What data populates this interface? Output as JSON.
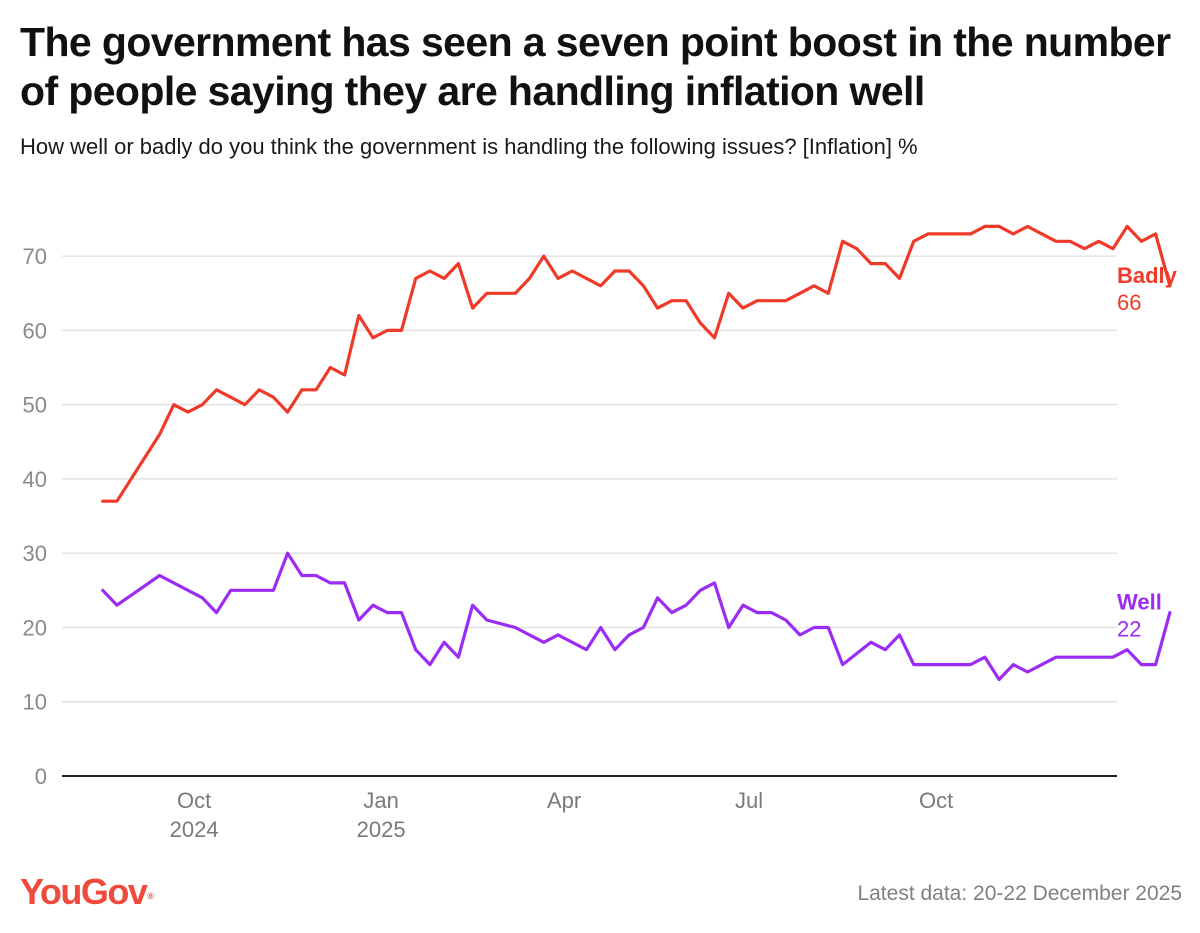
{
  "header": {
    "title": "The government has seen a seven point boost in the number of people saying they are handling inflation well",
    "subtitle": "How well or badly do you think the government is handling the following issues? [Inflation] %"
  },
  "footer": {
    "logo_text": "YouGov",
    "logo_mark": "®",
    "latest_data": "Latest data: 20-22 December 2025"
  },
  "colors": {
    "badly": "#f03a29",
    "well": "#9b2cf5",
    "grid": "#e3e3e3",
    "axis": "#222222",
    "tick": "#8a8a8a"
  },
  "chart_data": {
    "type": "line",
    "title": "The government has seen a seven point boost in the number of people saying they are handling inflation well",
    "ylabel": "%",
    "ylim": [
      0,
      75
    ],
    "yticks": [
      0,
      10,
      20,
      30,
      40,
      50,
      60,
      70
    ],
    "xlim": [
      "2024-07-28",
      "2025-12-29"
    ],
    "xticks": [
      {
        "date": "2024-10-01",
        "label": "Oct",
        "sublabel": "2024"
      },
      {
        "date": "2025-01-01",
        "label": "Jan",
        "sublabel": "2025"
      },
      {
        "date": "2025-04-01",
        "label": "Apr",
        "sublabel": ""
      },
      {
        "date": "2025-07-01",
        "label": "Jul",
        "sublabel": ""
      },
      {
        "date": "2025-10-01",
        "label": "Oct",
        "sublabel": ""
      }
    ],
    "grid": true,
    "series": [
      {
        "name": "Badly",
        "end_label": "Badly",
        "end_value": "66",
        "points": [
          [
            "2024-08-17",
            37
          ],
          [
            "2024-08-24",
            37
          ],
          [
            "2024-09-14",
            46
          ],
          [
            "2024-09-21",
            50
          ],
          [
            "2024-09-28",
            49
          ],
          [
            "2024-10-05",
            50
          ],
          [
            "2024-10-12",
            52
          ],
          [
            "2024-10-19",
            51
          ],
          [
            "2024-10-26",
            50
          ],
          [
            "2024-11-02",
            52
          ],
          [
            "2024-11-09",
            51
          ],
          [
            "2024-11-16",
            49
          ],
          [
            "2024-11-23",
            52
          ],
          [
            "2024-11-30",
            52
          ],
          [
            "2024-12-07",
            55
          ],
          [
            "2024-12-14",
            54
          ],
          [
            "2024-12-21",
            62
          ],
          [
            "2024-12-28",
            59
          ],
          [
            "2025-01-04",
            60
          ],
          [
            "2025-01-11",
            60
          ],
          [
            "2025-01-18",
            67
          ],
          [
            "2025-01-25",
            68
          ],
          [
            "2025-02-01",
            67
          ],
          [
            "2025-02-08",
            69
          ],
          [
            "2025-02-15",
            63
          ],
          [
            "2025-02-22",
            65
          ],
          [
            "2025-03-01",
            65
          ],
          [
            "2025-03-08",
            65
          ],
          [
            "2025-03-15",
            67
          ],
          [
            "2025-03-22",
            70
          ],
          [
            "2025-03-29",
            67
          ],
          [
            "2025-04-05",
            68
          ],
          [
            "2025-04-12",
            67
          ],
          [
            "2025-04-19",
            66
          ],
          [
            "2025-04-26",
            68
          ],
          [
            "2025-05-03",
            68
          ],
          [
            "2025-05-10",
            66
          ],
          [
            "2025-05-17",
            63
          ],
          [
            "2025-05-24",
            64
          ],
          [
            "2025-05-31",
            64
          ],
          [
            "2025-06-07",
            61
          ],
          [
            "2025-06-14",
            59
          ],
          [
            "2025-06-21",
            65
          ],
          [
            "2025-06-28",
            63
          ],
          [
            "2025-07-05",
            64
          ],
          [
            "2025-07-12",
            64
          ],
          [
            "2025-07-19",
            64
          ],
          [
            "2025-07-26",
            65
          ],
          [
            "2025-08-02",
            66
          ],
          [
            "2025-08-09",
            65
          ],
          [
            "2025-08-16",
            72
          ],
          [
            "2025-08-23",
            71
          ],
          [
            "2025-08-30",
            69
          ],
          [
            "2025-09-06",
            69
          ],
          [
            "2025-09-13",
            67
          ],
          [
            "2025-09-20",
            72
          ],
          [
            "2025-09-27",
            73
          ],
          [
            "2025-10-04",
            73
          ],
          [
            "2025-10-11",
            73
          ],
          [
            "2025-10-18",
            73
          ],
          [
            "2025-10-25",
            74
          ],
          [
            "2025-11-01",
            74
          ],
          [
            "2025-11-08",
            73
          ],
          [
            "2025-11-15",
            74
          ],
          [
            "2025-11-22",
            73
          ],
          [
            "2025-11-29",
            72
          ],
          [
            "2025-12-06",
            72
          ],
          [
            "2025-12-13",
            71
          ],
          [
            "2025-12-20",
            72
          ],
          [
            "2025-12-27",
            71
          ],
          [
            "2026-01-03",
            74
          ],
          [
            "2026-01-10",
            72
          ],
          [
            "2026-01-17",
            73
          ],
          [
            "2026-01-24",
            66
          ]
        ]
      },
      {
        "name": "Well",
        "end_label": "Well",
        "end_value": "22",
        "points": [
          [
            "2024-08-17",
            25
          ],
          [
            "2024-08-24",
            23
          ],
          [
            "2024-09-14",
            27
          ],
          [
            "2024-09-21",
            26
          ],
          [
            "2024-09-28",
            25
          ],
          [
            "2024-10-05",
            24
          ],
          [
            "2024-10-12",
            22
          ],
          [
            "2024-10-19",
            25
          ],
          [
            "2024-10-26",
            25
          ],
          [
            "2024-11-02",
            25
          ],
          [
            "2024-11-09",
            25
          ],
          [
            "2024-11-16",
            30
          ],
          [
            "2024-11-23",
            27
          ],
          [
            "2024-11-30",
            27
          ],
          [
            "2024-12-07",
            26
          ],
          [
            "2024-12-14",
            26
          ],
          [
            "2024-12-21",
            21
          ],
          [
            "2024-12-28",
            23
          ],
          [
            "2025-01-04",
            22
          ],
          [
            "2025-01-11",
            22
          ],
          [
            "2025-01-18",
            17
          ],
          [
            "2025-01-25",
            15
          ],
          [
            "2025-02-01",
            18
          ],
          [
            "2025-02-08",
            16
          ],
          [
            "2025-02-15",
            23
          ],
          [
            "2025-02-22",
            21
          ],
          [
            "2025-03-01",
            20.5
          ],
          [
            "2025-03-08",
            20
          ],
          [
            "2025-03-15",
            19
          ],
          [
            "2025-03-22",
            18
          ],
          [
            "2025-03-29",
            19
          ],
          [
            "2025-04-05",
            18
          ],
          [
            "2025-04-12",
            17
          ],
          [
            "2025-04-19",
            20
          ],
          [
            "2025-04-26",
            17
          ],
          [
            "2025-05-03",
            19
          ],
          [
            "2025-05-10",
            20
          ],
          [
            "2025-05-17",
            24
          ],
          [
            "2025-05-24",
            22
          ],
          [
            "2025-05-31",
            23
          ],
          [
            "2025-06-07",
            25
          ],
          [
            "2025-06-14",
            26
          ],
          [
            "2025-06-21",
            20
          ],
          [
            "2025-06-28",
            23
          ],
          [
            "2025-07-05",
            22
          ],
          [
            "2025-07-12",
            22
          ],
          [
            "2025-07-19",
            21
          ],
          [
            "2025-07-26",
            19
          ],
          [
            "2025-08-02",
            20
          ],
          [
            "2025-08-09",
            20
          ],
          [
            "2025-08-16",
            15
          ],
          [
            "2025-08-23",
            16.5
          ],
          [
            "2025-08-30",
            18
          ],
          [
            "2025-09-06",
            17
          ],
          [
            "2025-09-13",
            19
          ],
          [
            "2025-09-20",
            15
          ],
          [
            "2025-09-27",
            15
          ],
          [
            "2025-10-04",
            15
          ],
          [
            "2025-10-11",
            15
          ],
          [
            "2025-10-18",
            15
          ],
          [
            "2025-10-25",
            16
          ],
          [
            "2025-11-01",
            13
          ],
          [
            "2025-11-08",
            15
          ],
          [
            "2025-11-15",
            14
          ],
          [
            "2025-11-22",
            15
          ],
          [
            "2025-11-29",
            16
          ],
          [
            "2025-12-06",
            16
          ],
          [
            "2025-12-13",
            16
          ],
          [
            "2025-12-20",
            16
          ],
          [
            "2025-12-27",
            16
          ],
          [
            "2026-01-03",
            17
          ],
          [
            "2026-01-10",
            15
          ],
          [
            "2026-01-17",
            15
          ],
          [
            "2026-01-24",
            22
          ]
        ]
      }
    ]
  }
}
